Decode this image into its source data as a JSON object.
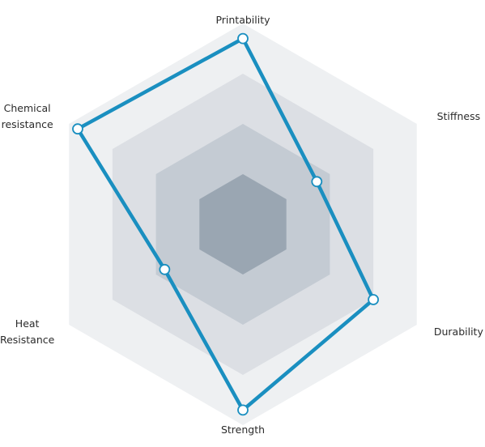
{
  "chart_data": {
    "type": "radar",
    "axes": [
      {
        "key": "printability",
        "lines": [
          "Printability"
        ]
      },
      {
        "key": "stiffness",
        "lines": [
          "Stiffness"
        ]
      },
      {
        "key": "durability",
        "lines": [
          "Durability"
        ]
      },
      {
        "key": "strength",
        "lines": [
          "Strength"
        ]
      },
      {
        "key": "heat_resistance",
        "lines": [
          "Heat",
          "Resistance"
        ]
      },
      {
        "key": "chemical_resistance",
        "lines": [
          "Chemical",
          "resistance"
        ]
      }
    ],
    "levels": 4,
    "max": 4,
    "series": [
      {
        "values": [
          3.7,
          1.7,
          3.0,
          3.7,
          1.8,
          3.8
        ]
      }
    ],
    "grid_level_colors": [
      "#eef0f2",
      "#dcdfe4",
      "#c4cbd3",
      "#9aa6b2"
    ],
    "series_color": "#1a8fc0"
  }
}
